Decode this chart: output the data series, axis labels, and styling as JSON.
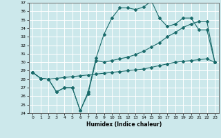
{
  "title": "",
  "xlabel": "Humidex (Indice chaleur)",
  "bg_color": "#cce8eb",
  "grid_color": "#ffffff",
  "line_color": "#1a6b6b",
  "ylim": [
    24,
    37
  ],
  "xlim": [
    -0.5,
    23.5
  ],
  "yticks": [
    24,
    25,
    26,
    27,
    28,
    29,
    30,
    31,
    32,
    33,
    34,
    35,
    36,
    37
  ],
  "xticks": [
    0,
    1,
    2,
    3,
    4,
    5,
    6,
    7,
    8,
    9,
    10,
    11,
    12,
    13,
    14,
    15,
    16,
    17,
    18,
    19,
    20,
    21,
    22,
    23
  ],
  "line1_x": [
    0,
    1,
    2,
    3,
    4,
    5,
    6,
    7,
    8,
    9,
    10,
    11,
    12,
    13,
    14,
    15,
    16,
    17,
    18,
    19,
    20,
    21,
    22,
    23
  ],
  "line1_y": [
    28.8,
    28.1,
    28.0,
    26.5,
    27.0,
    27.0,
    24.3,
    26.5,
    30.5,
    33.3,
    35.2,
    36.4,
    36.4,
    36.2,
    36.5,
    37.2,
    35.2,
    34.2,
    34.5,
    35.2,
    35.2,
    33.8,
    33.8,
    30.0
  ],
  "line2_x": [
    0,
    1,
    2,
    3,
    4,
    5,
    6,
    7,
    8,
    9,
    10,
    11,
    12,
    13,
    14,
    15,
    16,
    17,
    18,
    19,
    20,
    21,
    22,
    23
  ],
  "line2_y": [
    28.8,
    28.1,
    28.0,
    26.5,
    27.0,
    27.0,
    24.3,
    26.3,
    30.2,
    30.0,
    30.2,
    30.4,
    30.6,
    30.9,
    31.3,
    31.8,
    32.3,
    33.0,
    33.5,
    34.1,
    34.5,
    34.8,
    34.8,
    30.0
  ],
  "line3_x": [
    0,
    1,
    2,
    3,
    4,
    5,
    6,
    7,
    8,
    9,
    10,
    11,
    12,
    13,
    14,
    15,
    16,
    17,
    18,
    19,
    20,
    21,
    22,
    23
  ],
  "line3_y": [
    28.8,
    28.1,
    28.0,
    28.1,
    28.2,
    28.3,
    28.4,
    28.5,
    28.6,
    28.7,
    28.8,
    28.9,
    29.0,
    29.1,
    29.2,
    29.4,
    29.6,
    29.8,
    30.0,
    30.1,
    30.2,
    30.3,
    30.4,
    30.0
  ]
}
